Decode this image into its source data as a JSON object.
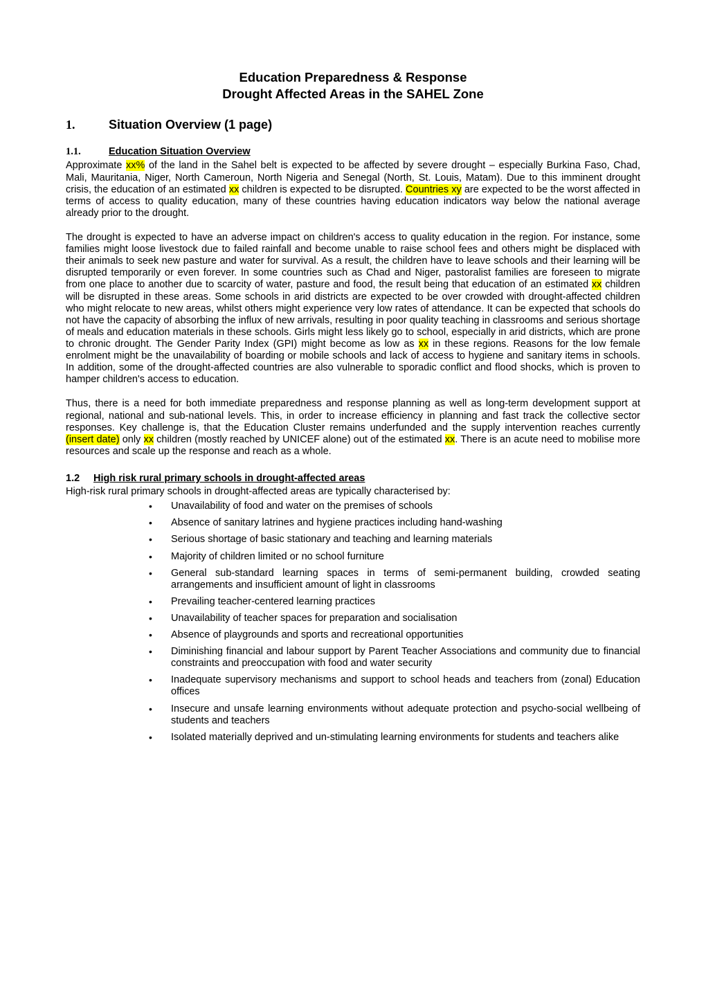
{
  "title": {
    "line1": "Education Preparedness & Response",
    "line2": "Drought Affected Areas in the SAHEL Zone"
  },
  "section1": {
    "number": "1.",
    "label": "Situation Overview (1 page)"
  },
  "sub11": {
    "number": "1.1.",
    "label": "Education Situation Overview"
  },
  "para1": {
    "t1": "Approximate ",
    "h1": "xx%",
    "t2": " of the land in the Sahel belt is expected to be affected by severe drought – especially Burkina Faso, Chad, Mali, Mauritania, Niger, North Cameroun, North Nigeria and Senegal (North, St. Louis, Matam). Due to this imminent drought crisis, the education of an estimated ",
    "h2": "xx",
    "t3": " children is expected to be disrupted. ",
    "h3": "Countries xy",
    "t4": " are expected to be the worst affected in terms of access to quality education, many of these countries having education indicators way below the national average already prior to the drought."
  },
  "para2": {
    "t1": "The drought is expected to have an adverse impact on children's access to quality education in the region. For instance, some families might loose livestock due to failed rainfall and become unable to raise school fees and others might be displaced with their animals to seek new pasture and water for survival. As a result, the children have to leave schools and their learning will be disrupted temporarily or even forever. In some countries such as Chad and Niger, pastoralist families are foreseen to migrate from one place to another due to scarcity of water, pasture and food, the result being that education of an estimated ",
    "h1": "xx",
    "t2": " children will be disrupted in these areas. Some schools in arid districts are expected to be over crowded with drought-affected children who might relocate to new areas, whilst others might experience very low rates of attendance. It can be expected that schools do not have the capacity of absorbing the influx of new arrivals, resulting in poor quality teaching in classrooms and serious shortage of meals and education materials in these schools. Girls might less likely go to school, especially in arid districts, which are prone to chronic drought. The Gender Parity Index (GPI) might become as low as ",
    "h2": "xx",
    "t3": " in these regions. Reasons for the low female enrolment might be the unavailability of boarding or mobile schools and lack of access to hygiene and sanitary items in schools. In addition, some of the drought-affected countries are also vulnerable to sporadic conflict and flood shocks, which is proven to hamper children's access to education."
  },
  "para3": {
    "t1": "Thus, there is a need for both immediate preparedness and response planning as well as long-term development support at regional, national and sub-national levels. This, in order to increase efficiency in planning and fast track the collective sector responses. Key challenge is, that the Education Cluster remains underfunded and the supply intervention reaches currently ",
    "h1": "(insert date)",
    "t2": " only ",
    "h2": "xx",
    "t3": " children (mostly reached by UNICEF alone) out of the estimated ",
    "h3": "xx",
    "t4": ". There is an acute need to mobilise more resources and scale up the response and reach as a whole."
  },
  "sub12": {
    "number": "1.2",
    "label": "High risk rural primary schools in drought-affected areas"
  },
  "intro12": "High-risk rural primary schools in drought-affected areas are typically characterised by:",
  "bullets": [
    "Unavailability of food and water on the premises of schools",
    "Absence of sanitary latrines and hygiene practices including hand-washing",
    "Serious shortage of basic stationary and teaching and learning materials",
    "Majority of children limited or no school furniture",
    "General sub-standard learning spaces in terms of semi-permanent building, crowded seating arrangements and insufficient amount of light in classrooms",
    "Prevailing teacher-centered learning practices",
    "Unavailability of teacher spaces for preparation and socialisation",
    "Absence of playgrounds and sports and recreational opportunities",
    "Diminishing financial and labour support by Parent Teacher Associations and community due to financial constraints and preoccupation with food and water security",
    "Inadequate supervisory mechanisms and support to school heads and teachers from (zonal) Education offices",
    "Insecure and unsafe learning environments without adequate protection and psycho-social wellbeing of students and teachers",
    "Isolated materially deprived and un-stimulating learning environments for students and teachers alike"
  ],
  "colors": {
    "highlight": "#ffff00",
    "text": "#000000",
    "background": "#ffffff"
  }
}
